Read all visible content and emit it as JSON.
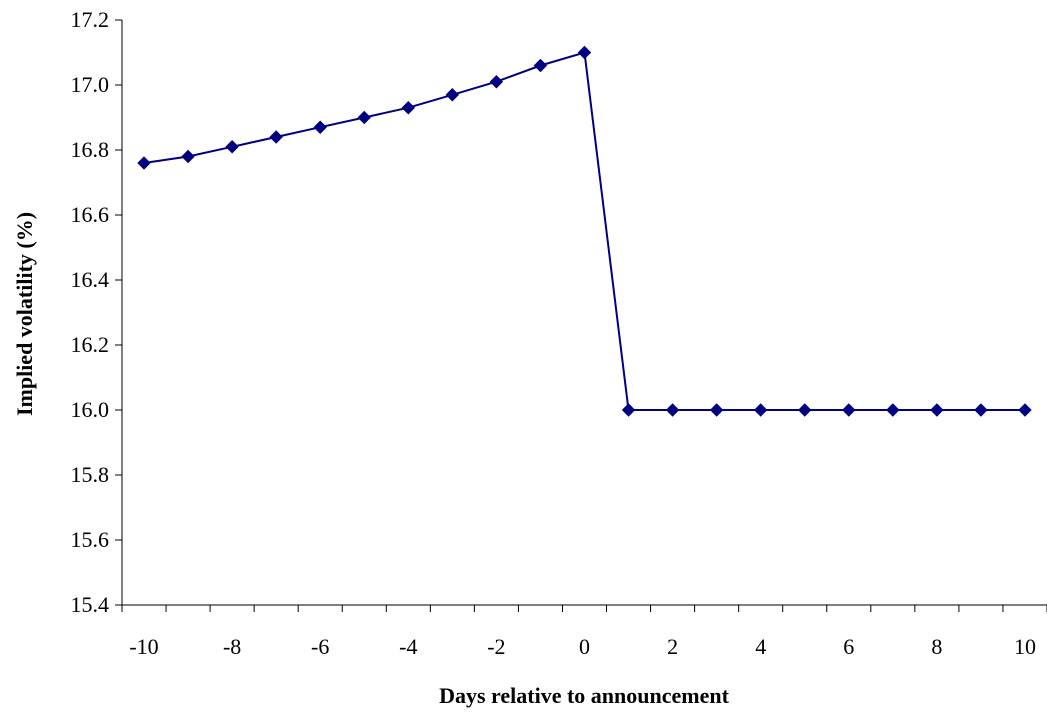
{
  "chart_data": {
    "type": "line",
    "xlabel": "Days relative to announcement",
    "ylabel": "Implied volatility (%)",
    "ylim": [
      15.4,
      17.2
    ],
    "y_ticks": [
      "15.4",
      "15.6",
      "15.8",
      "16.0",
      "16.2",
      "16.4",
      "16.6",
      "16.8",
      "17.0",
      "17.2"
    ],
    "x_ticks": [
      "-10",
      "-8",
      "-6",
      "-4",
      "-2",
      "0",
      "2",
      "4",
      "6",
      "8",
      "10"
    ],
    "x": [
      -10,
      -9,
      -8,
      -7,
      -6,
      -5,
      -4,
      -3,
      -2,
      -1,
      0,
      1,
      2,
      3,
      4,
      5,
      6,
      7,
      8,
      9,
      10
    ],
    "series": [
      {
        "values": [
          16.76,
          16.78,
          16.81,
          16.84,
          16.87,
          16.9,
          16.93,
          16.97,
          17.01,
          17.06,
          17.1,
          16.0,
          16.0,
          16.0,
          16.0,
          16.0,
          16.0,
          16.0,
          16.0,
          16.0,
          16.0
        ],
        "color": "#000080",
        "marker": "diamond"
      }
    ],
    "grid": false,
    "legend": false
  }
}
